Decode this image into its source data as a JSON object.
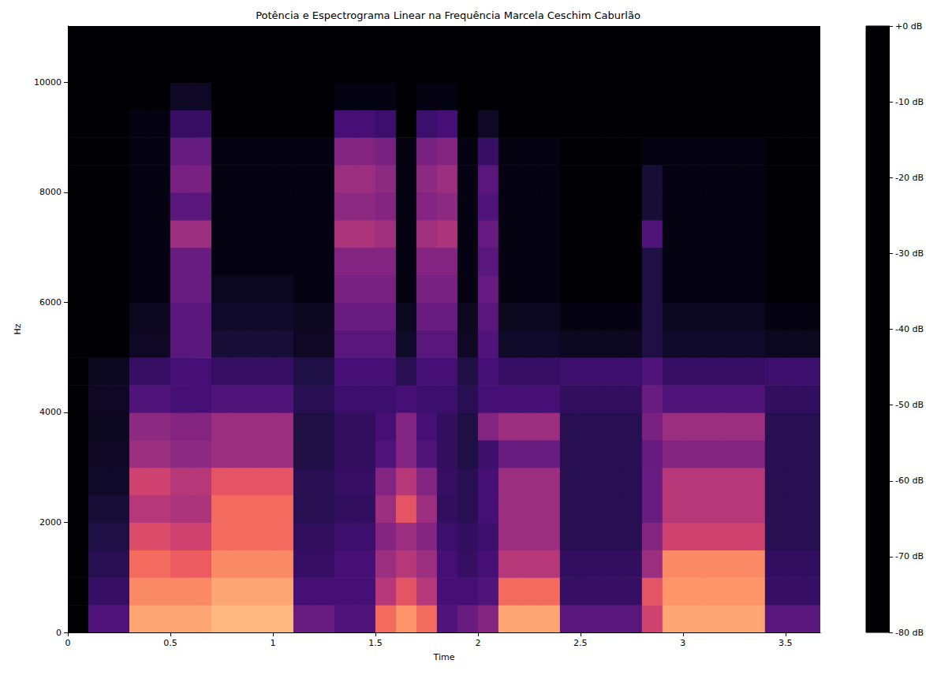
{
  "chart_data": {
    "type": "heatmap",
    "title": "Potência e Espectrograma Linear na Frequência Marcela Ceschim Caburlão",
    "x_label": "Time",
    "y_label": "Hz",
    "xlim": [
      0,
      3.67
    ],
    "xticks": [
      0,
      0.5,
      1,
      1.5,
      2,
      2.5,
      3,
      3.5
    ],
    "ylim": [
      0,
      11025
    ],
    "yticks": [
      0,
      2000,
      4000,
      6000,
      8000,
      10000
    ],
    "grid": false,
    "time_bins": [
      0,
      0.1,
      0.2,
      0.3,
      0.4,
      0.5,
      0.6,
      0.7,
      0.8,
      0.9,
      1.0,
      1.1,
      1.2,
      1.3,
      1.4,
      1.5,
      1.6,
      1.7,
      1.8,
      1.9,
      2.0,
      2.1,
      2.2,
      2.3,
      2.4,
      2.5,
      2.6,
      2.7,
      2.8,
      2.9,
      3.0,
      3.1,
      3.2,
      3.3,
      3.4,
      3.5,
      3.6,
      3.67
    ],
    "freq_bins": [
      0,
      500,
      1000,
      1500,
      2000,
      2500,
      3000,
      3500,
      4000,
      4500,
      5000,
      5500,
      6000,
      6500,
      7000,
      7500,
      8000,
      8500,
      9000,
      9500,
      10000,
      10500,
      11025
    ],
    "cells": [
      [
        -80,
        -60,
        -60,
        -15,
        -15,
        -15,
        -15,
        -12,
        -12,
        -12,
        -12,
        -55,
        -55,
        -60,
        -60,
        -25,
        -18,
        -25,
        -60,
        -55,
        -50,
        -15,
        -15,
        -15,
        -58,
        -58,
        -58,
        -58,
        -35,
        -15,
        -15,
        -15,
        -15,
        -15,
        -58,
        -58,
        -58
      ],
      [
        -80,
        -65,
        -65,
        -20,
        -20,
        -20,
        -20,
        -15,
        -15,
        -15,
        -15,
        -62,
        -62,
        -62,
        -62,
        -40,
        -30,
        -40,
        -62,
        -62,
        -60,
        -25,
        -25,
        -25,
        -65,
        -65,
        -65,
        -65,
        -30,
        -18,
        -18,
        -18,
        -18,
        -18,
        -65,
        -65,
        -65
      ],
      [
        -80,
        -68,
        -68,
        -25,
        -25,
        -28,
        -28,
        -20,
        -20,
        -20,
        -20,
        -65,
        -65,
        -62,
        -62,
        -45,
        -40,
        -45,
        -62,
        -65,
        -62,
        -40,
        -40,
        -40,
        -66,
        -66,
        -66,
        -66,
        -45,
        -20,
        -20,
        -20,
        -20,
        -20,
        -66,
        -66,
        -66
      ],
      [
        -80,
        -70,
        -70,
        -32,
        -32,
        -35,
        -35,
        -25,
        -25,
        -25,
        -25,
        -66,
        -66,
        -64,
        -64,
        -50,
        -45,
        -50,
        -64,
        -66,
        -64,
        -45,
        -45,
        -45,
        -68,
        -68,
        -68,
        -68,
        -50,
        -35,
        -35,
        -35,
        -35,
        -35,
        -68,
        -68,
        -68
      ],
      [
        -80,
        -72,
        -72,
        -40,
        -40,
        -42,
        -42,
        -25,
        -25,
        -25,
        -25,
        -68,
        -68,
        -66,
        -66,
        -45,
        -30,
        -45,
        -66,
        -68,
        -62,
        -45,
        -45,
        -45,
        -68,
        -68,
        -68,
        -68,
        -55,
        -40,
        -40,
        -40,
        -40,
        -40,
        -68,
        -68,
        -68
      ],
      [
        -80,
        -74,
        -74,
        -35,
        -35,
        -40,
        -40,
        -30,
        -30,
        -30,
        -30,
        -68,
        -68,
        -65,
        -65,
        -50,
        -40,
        -50,
        -65,
        -68,
        -62,
        -45,
        -45,
        -45,
        -68,
        -68,
        -68,
        -68,
        -55,
        -40,
        -40,
        -40,
        -40,
        -40,
        -68,
        -68,
        -68
      ],
      [
        -80,
        -75,
        -75,
        -45,
        -45,
        -48,
        -48,
        -45,
        -45,
        -45,
        -45,
        -70,
        -70,
        -66,
        -66,
        -60,
        -50,
        -60,
        -66,
        -70,
        -64,
        -55,
        -55,
        -55,
        -68,
        -68,
        -68,
        -68,
        -56,
        -50,
        -50,
        -50,
        -50,
        -50,
        -68,
        -68,
        -68
      ],
      [
        -80,
        -76,
        -76,
        -48,
        -48,
        -50,
        -50,
        -45,
        -45,
        -45,
        -45,
        -70,
        -70,
        -66,
        -66,
        -62,
        -50,
        -62,
        -66,
        -70,
        -50,
        -45,
        -45,
        -45,
        -68,
        -68,
        -68,
        -68,
        -52,
        -45,
        -45,
        -45,
        -45,
        -45,
        -68,
        -68,
        -68
      ],
      [
        -80,
        -75,
        -75,
        -60,
        -60,
        -62,
        -62,
        -60,
        -60,
        -60,
        -60,
        -68,
        -68,
        -64,
        -64,
        -64,
        -62,
        -64,
        -64,
        -68,
        -62,
        -62,
        -62,
        -62,
        -66,
        -66,
        -66,
        -66,
        -55,
        -60,
        -60,
        -60,
        -60,
        -60,
        -66,
        -66,
        -66
      ],
      [
        -80,
        -76,
        -76,
        -65,
        -65,
        -62,
        -62,
        -65,
        -65,
        -65,
        -65,
        -70,
        -70,
        -62,
        -62,
        -62,
        -68,
        -62,
        -62,
        -70,
        -62,
        -65,
        -65,
        -65,
        -64,
        -64,
        -64,
        -64,
        -60,
        -65,
        -65,
        -65,
        -65,
        -65,
        -64,
        -64,
        -64
      ],
      [
        -80,
        -80,
        -80,
        -75,
        -75,
        -58,
        -58,
        -72,
        -72,
        -72,
        -72,
        -75,
        -75,
        -58,
        -58,
        -58,
        -74,
        -58,
        -58,
        -75,
        -60,
        -74,
        -74,
        -74,
        -76,
        -76,
        -76,
        -76,
        -70,
        -74,
        -74,
        -74,
        -74,
        -74,
        -76,
        -76,
        -76
      ],
      [
        -80,
        -80,
        -80,
        -76,
        -76,
        -58,
        -58,
        -74,
        -74,
        -74,
        -74,
        -76,
        -76,
        -55,
        -55,
        -55,
        -76,
        -55,
        -55,
        -76,
        -58,
        -76,
        -76,
        -76,
        -78,
        -78,
        -78,
        -78,
        -70,
        -76,
        -76,
        -76,
        -76,
        -76,
        -78,
        -78,
        -78
      ],
      [
        -80,
        -80,
        -80,
        -78,
        -78,
        -55,
        -55,
        -76,
        -76,
        -76,
        -76,
        -78,
        -78,
        -52,
        -52,
        -52,
        -78,
        -52,
        -52,
        -78,
        -56,
        -78,
        -78,
        -78,
        -80,
        -80,
        -80,
        -80,
        -70,
        -78,
        -78,
        -78,
        -78,
        -78,
        -80,
        -80,
        -80
      ],
      [
        -80,
        -80,
        -80,
        -78,
        -78,
        -55,
        -55,
        -78,
        -78,
        -78,
        -78,
        -78,
        -78,
        -50,
        -50,
        -50,
        -78,
        -50,
        -50,
        -78,
        -58,
        -78,
        -78,
        -78,
        -80,
        -80,
        -80,
        -80,
        -70,
        -78,
        -78,
        -78,
        -78,
        -78,
        -80,
        -80,
        -80
      ],
      [
        -80,
        -80,
        -80,
        -78,
        -78,
        -45,
        -45,
        -78,
        -78,
        -78,
        -78,
        -78,
        -78,
        -42,
        -42,
        -44,
        -78,
        -44,
        -42,
        -78,
        -56,
        -78,
        -78,
        -78,
        -80,
        -80,
        -80,
        -80,
        -60,
        -78,
        -78,
        -78,
        -78,
        -78,
        -80,
        -80,
        -80
      ],
      [
        -80,
        -80,
        -80,
        -78,
        -78,
        -58,
        -58,
        -78,
        -78,
        -78,
        -78,
        -78,
        -78,
        -48,
        -48,
        -50,
        -78,
        -50,
        -48,
        -78,
        -60,
        -78,
        -78,
        -78,
        -80,
        -80,
        -80,
        -80,
        -72,
        -78,
        -78,
        -78,
        -78,
        -78,
        -80,
        -80,
        -80
      ],
      [
        -80,
        -80,
        -80,
        -78,
        -78,
        -52,
        -52,
        -78,
        -78,
        -78,
        -78,
        -78,
        -78,
        -45,
        -45,
        -48,
        -78,
        -48,
        -45,
        -78,
        -58,
        -78,
        -78,
        -78,
        -80,
        -80,
        -80,
        -80,
        -72,
        -78,
        -78,
        -78,
        -78,
        -78,
        -80,
        -80,
        -80
      ],
      [
        -80,
        -80,
        -80,
        -78,
        -78,
        -56,
        -56,
        -78,
        -78,
        -78,
        -78,
        -78,
        -78,
        -50,
        -50,
        -52,
        -78,
        -52,
        -50,
        -78,
        -65,
        -78,
        -78,
        -78,
        -80,
        -80,
        -80,
        -80,
        -78,
        -78,
        -78,
        -78,
        -78,
        -78,
        -80,
        -80,
        -80
      ],
      [
        -80,
        -80,
        -80,
        -78,
        -78,
        -65,
        -65,
        -80,
        -80,
        -80,
        -80,
        -80,
        -80,
        -62,
        -62,
        -64,
        -80,
        -64,
        -62,
        -80,
        -75,
        -80,
        -80,
        -80,
        -80,
        -80,
        -80,
        -80,
        -80,
        -80,
        -80,
        -80,
        -80,
        -80,
        -80,
        -80,
        -80
      ],
      [
        -80,
        -80,
        -80,
        -80,
        -80,
        -75,
        -75,
        -80,
        -80,
        -80,
        -80,
        -80,
        -80,
        -78,
        -78,
        -78,
        -80,
        -78,
        -78,
        -80,
        -80,
        -80,
        -80,
        -80,
        -80,
        -80,
        -80,
        -80,
        -80,
        -80,
        -80,
        -80,
        -80,
        -80,
        -80,
        -80,
        -80
      ],
      [
        -80,
        -80,
        -80,
        -80,
        -80,
        -80,
        -80,
        -80,
        -80,
        -80,
        -80,
        -80,
        -80,
        -80,
        -80,
        -80,
        -80,
        -80,
        -80,
        -80,
        -80,
        -80,
        -80,
        -80,
        -80,
        -80,
        -80,
        -80,
        -80,
        -80,
        -80,
        -80,
        -80,
        -80,
        -80,
        -80,
        -80
      ],
      [
        -80,
        -80,
        -80,
        -80,
        -80,
        -80,
        -80,
        -80,
        -80,
        -80,
        -80,
        -80,
        -80,
        -80,
        -80,
        -80,
        -80,
        -80,
        -80,
        -80,
        -80,
        -80,
        -80,
        -80,
        -80,
        -80,
        -80,
        -80,
        -80,
        -80,
        -80,
        -80,
        -80,
        -80,
        -80,
        -80,
        -80
      ]
    ],
    "colorbar": {
      "range": [
        -80,
        0
      ],
      "ticks": [
        {
          "value": 0,
          "label": "+0 dB"
        },
        {
          "value": -10,
          "label": "-10 dB"
        },
        {
          "value": -20,
          "label": "-20 dB"
        },
        {
          "value": -30,
          "label": "-30 dB"
        },
        {
          "value": -40,
          "label": "-40 dB"
        },
        {
          "value": -50,
          "label": "-50 dB"
        },
        {
          "value": -60,
          "label": "-60 dB"
        },
        {
          "value": -70,
          "label": "-70 dB"
        },
        {
          "value": -80,
          "label": "-80 dB"
        }
      ]
    }
  }
}
